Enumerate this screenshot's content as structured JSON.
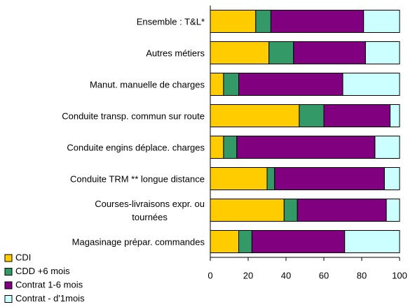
{
  "chart_data": {
    "type": "stacked-bar-horizontal",
    "categories": [
      "Ensemble : T&L*",
      "Autres métiers",
      "Manut. manuelle de charges",
      "Conduite transp. commun sur route",
      "Conduite engins déplace. charges",
      "Conduite TRM ** longue distance",
      "Courses-livraisons expr. ou\ntournées",
      "Magasinage prépar. commandes"
    ],
    "series": [
      {
        "name": "CDI",
        "color": "#ffcc00",
        "values": [
          24,
          31,
          7,
          47,
          7,
          30,
          39,
          15
        ]
      },
      {
        "name": "CDD +6 mois",
        "color": "#339966",
        "values": [
          8,
          13,
          8,
          13,
          7,
          4,
          7,
          7
        ]
      },
      {
        "name": "Contrat 1-6 mois",
        "color": "#800080",
        "values": [
          49,
          38,
          55,
          35,
          73,
          58,
          47,
          49
        ]
      },
      {
        "name": "Contrat - d'1mois",
        "color": "#ccffff",
        "values": [
          19,
          18,
          30,
          5,
          13,
          8,
          7,
          29
        ]
      }
    ],
    "xlim": [
      0,
      100
    ],
    "xticks": [
      0,
      20,
      40,
      60,
      80,
      100
    ],
    "legend": "bottom-left"
  }
}
